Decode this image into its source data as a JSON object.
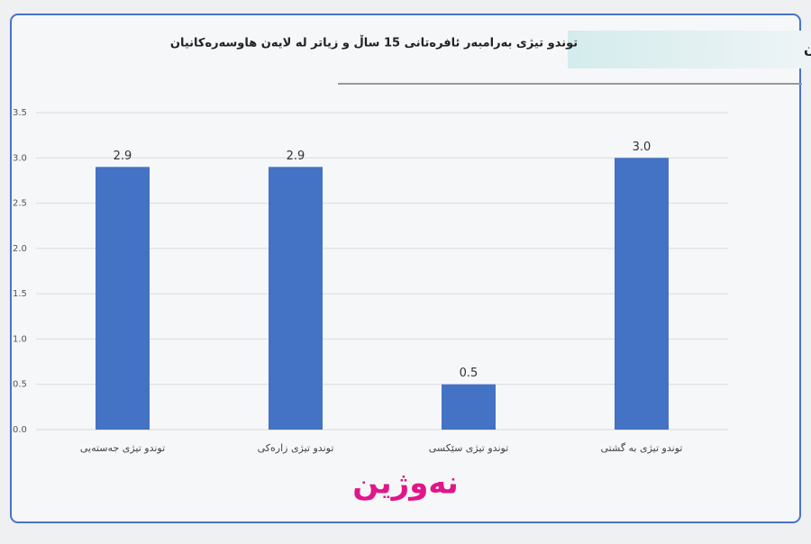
{
  "header": "توندوتیژی دژی ئافرەتان",
  "logo": "نەوژین",
  "chart_data": {
    "type": "bar",
    "title": "توندو تیژی بەرامبەر ئافرەتانی 15 ساڵ و زیاتر لە لایەن هاوسەرەکانیان",
    "categories": [
      "توندو تیژی جەستەیی",
      "توندو تیژی زارەکی",
      "توندو تیژی سێکسی",
      "توندو تیژی بە گشتی"
    ],
    "values": [
      2.9,
      2.9,
      0.5,
      3.0
    ],
    "value_labels": [
      "2.9",
      "2.9",
      "0.5",
      "3.0"
    ],
    "color": "#4472c4",
    "ylim": [
      0,
      3.5
    ],
    "yticks": [
      {
        "value": 0,
        "label": "0.0"
      },
      0.5,
      {
        "value": 1,
        "label": "1.0"
      },
      1.5,
      {
        "value": 2,
        "label": "2.0"
      },
      2.5,
      {
        "value": 3,
        "label": "3.0"
      },
      3.5
    ],
    "grid": true
  }
}
